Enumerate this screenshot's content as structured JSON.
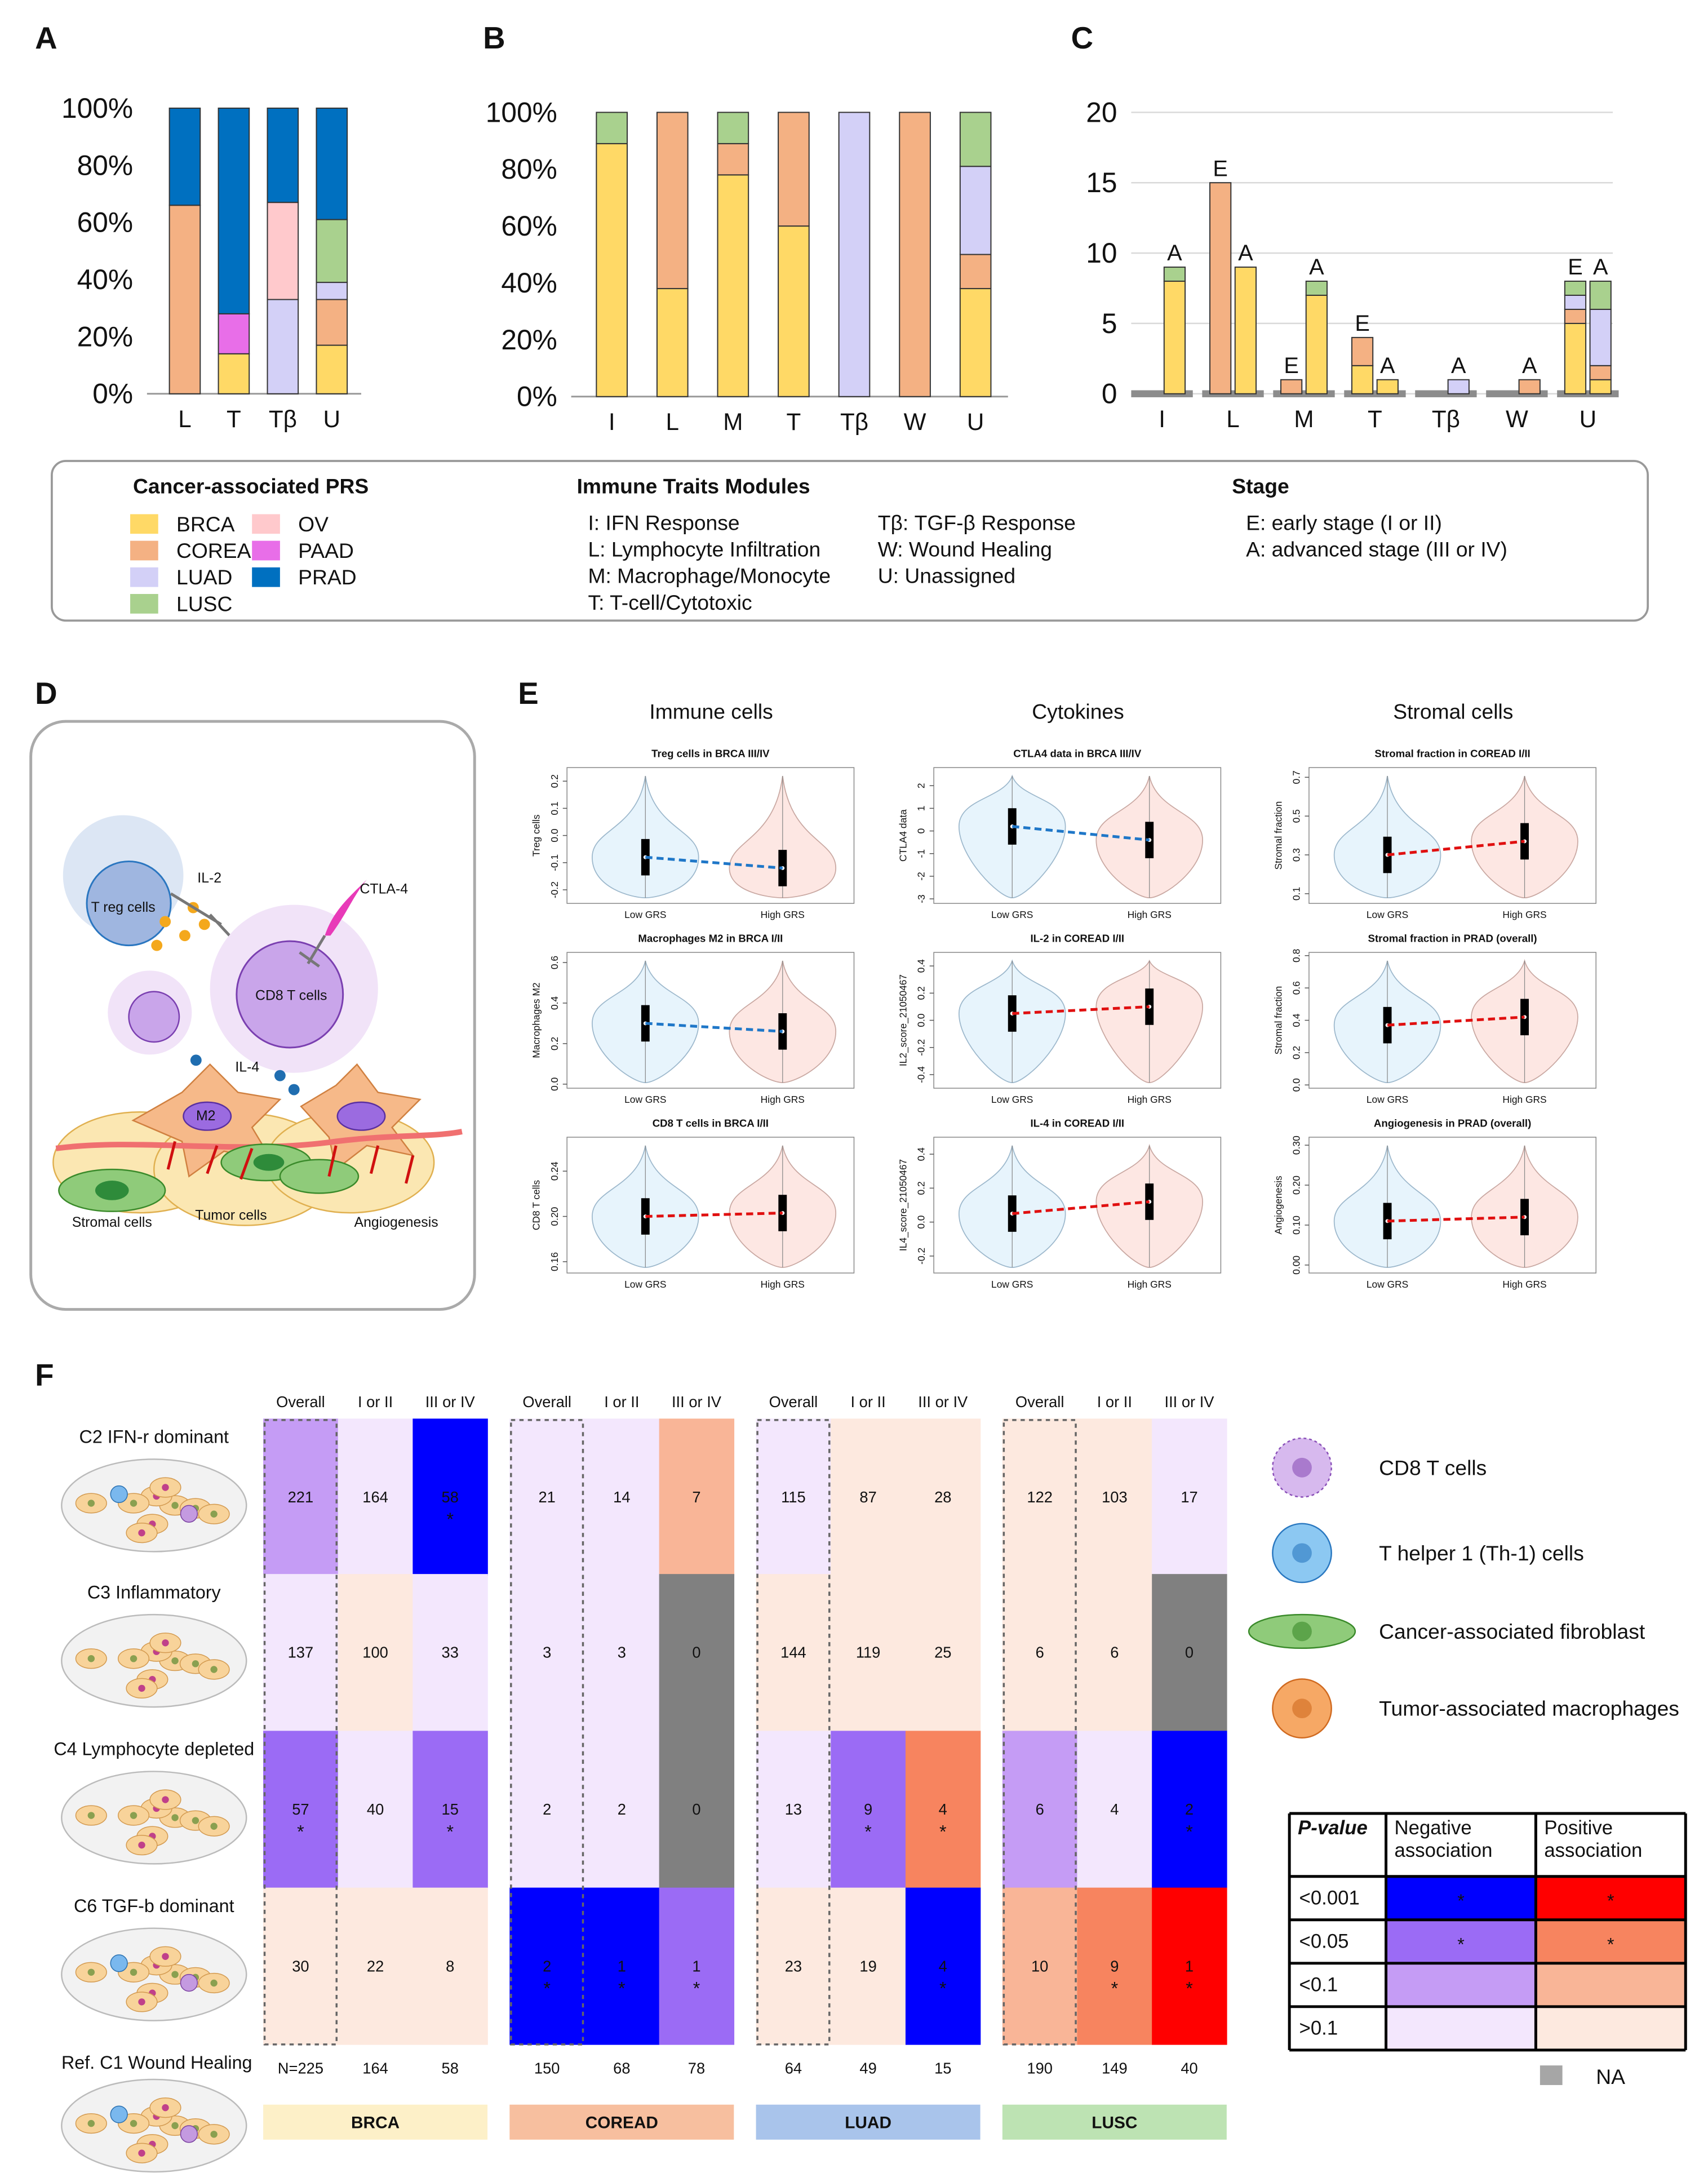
{
  "chart_data": [
    {
      "type": "bar",
      "label": "A",
      "stacked": true,
      "categories": [
        "L",
        "T",
        "Tβ",
        "U"
      ],
      "series": [
        {
          "name": "BRCA",
          "color": "#ffd966",
          "values": [
            0,
            14,
            0,
            17
          ]
        },
        {
          "name": "COREAD",
          "color": "#f4b183",
          "values": [
            66,
            0,
            0,
            16
          ]
        },
        {
          "name": "LUAD",
          "color": "#d3d0f7",
          "values": [
            0,
            0,
            33,
            6
          ]
        },
        {
          "name": "LUSC",
          "color": "#a9d18e",
          "values": [
            0,
            0,
            0,
            22
          ]
        },
        {
          "name": "OV",
          "color": "#ffc9cc",
          "values": [
            0,
            0,
            34,
            0
          ]
        },
        {
          "name": "PAAD",
          "color": "#e86ee8",
          "values": [
            0,
            14,
            0,
            0
          ]
        },
        {
          "name": "PRAD",
          "color": "#0070c0",
          "values": [
            34,
            72,
            33,
            39
          ]
        }
      ],
      "ylim": [
        0,
        100
      ],
      "yticks": [
        {
          "value": 0,
          "label": "0%"
        },
        {
          "value": 20,
          "label": "20%"
        },
        {
          "value": 40,
          "label": "40%"
        },
        {
          "value": 60,
          "label": "60%"
        },
        {
          "value": 80,
          "label": "80%"
        },
        {
          "value": 100,
          "label": "100%"
        }
      ]
    },
    {
      "type": "bar",
      "label": "B",
      "stacked": true,
      "categories": [
        "I",
        "L",
        "M",
        "T",
        "Tβ",
        "W",
        "U"
      ],
      "series": [
        {
          "name": "BRCA",
          "color": "#ffd966",
          "values": [
            89,
            38,
            78,
            60,
            0,
            0,
            38
          ]
        },
        {
          "name": "COREAD",
          "color": "#f4b183",
          "values": [
            0,
            62,
            11,
            40,
            0,
            100,
            12
          ]
        },
        {
          "name": "LUAD",
          "color": "#d3d0f7",
          "values": [
            0,
            0,
            0,
            0,
            100,
            0,
            31
          ]
        },
        {
          "name": "LUSC",
          "color": "#a9d18e",
          "values": [
            11,
            0,
            11,
            0,
            0,
            0,
            19
          ]
        }
      ],
      "ylim": [
        0,
        100
      ],
      "yticks": [
        {
          "value": 0,
          "label": "0%"
        },
        {
          "value": 20,
          "label": "20%"
        },
        {
          "value": 40,
          "label": "40%"
        },
        {
          "value": 60,
          "label": "60%"
        },
        {
          "value": 80,
          "label": "80%"
        },
        {
          "value": 100,
          "label": "100%"
        }
      ]
    },
    {
      "type": "bar",
      "label": "C",
      "stacked": true,
      "categories": [
        "I",
        "L",
        "M",
        "T",
        "Tβ",
        "W",
        "U"
      ],
      "stage_labels": [
        "E",
        "A"
      ],
      "series": [
        {
          "name": "BRCA",
          "color": "#ffd966",
          "values": [
            [
              null,
              8
            ],
            [
              0,
              9
            ],
            [
              0,
              7
            ],
            [
              2,
              1
            ],
            [
              null,
              0
            ],
            [
              null,
              0
            ],
            [
              5,
              1
            ]
          ]
        },
        {
          "name": "COREAD",
          "color": "#f4b183",
          "values": [
            [
              null,
              0
            ],
            [
              15,
              0
            ],
            [
              1,
              0
            ],
            [
              2,
              0
            ],
            [
              null,
              0
            ],
            [
              null,
              1
            ],
            [
              1,
              1
            ]
          ]
        },
        {
          "name": "LUAD",
          "color": "#d3d0f7",
          "values": [
            [
              null,
              0
            ],
            [
              0,
              0
            ],
            [
              0,
              0
            ],
            [
              0,
              0
            ],
            [
              null,
              1
            ],
            [
              null,
              0
            ],
            [
              1,
              4
            ]
          ]
        },
        {
          "name": "LUSC",
          "color": "#a9d18e",
          "values": [
            [
              null,
              1
            ],
            [
              0,
              0
            ],
            [
              0,
              1
            ],
            [
              0,
              0
            ],
            [
              null,
              0
            ],
            [
              null,
              0
            ],
            [
              1,
              2
            ]
          ]
        }
      ],
      "ylim": [
        0,
        20
      ],
      "yticks": [
        0,
        5,
        10,
        15,
        20
      ],
      "grid": true
    }
  ],
  "legend": {
    "title": "Cancer-associated PRS"
  },
  "modules": {
    "title": "Immune Traits Modules",
    "items": [
      "I: IFN Response",
      "L: Lymphocyte Infiltration",
      "M: Macrophage/Monocyte",
      "T: T-cell/Cytotoxic",
      "Tβ: TGF-β Response",
      "W: Wound Healing",
      "U: Unassigned"
    ]
  },
  "stages": {
    "title": "Stage",
    "items": [
      "E: early stage (I or II)",
      "A: advanced stage (III or IV)"
    ]
  },
  "panel_d": {
    "label": "D",
    "treg": "T reg cells",
    "il2": "IL-2",
    "ctla4": "CTLA-4",
    "cd8": "CD8 T cells",
    "il4": "IL-4",
    "m2": "M2",
    "stromal": "Stromal cells",
    "tumor": "Tumor cells",
    "angio": "Angiogenesis"
  },
  "panel_e": {
    "label": "E",
    "columns": [
      "Immune cells",
      "Cytokines",
      "Stromal cells"
    ],
    "x_labels": [
      "Low GRS",
      "High GRS"
    ],
    "plots": [
      {
        "title": "Treg cells in BRCA III/IV",
        "ylabel": "Treg cells",
        "ylim": [
          -0.25,
          0.25
        ],
        "yticks": [
          -0.2,
          -0.1,
          {
            "value": 0,
            "label": "0.0"
          },
          0.1,
          0.2
        ],
        "medians": [
          -0.08,
          -0.12
        ],
        "line_color": "#1f77c8"
      },
      {
        "title": "CTLA4 data in BRCA III/IV",
        "ylabel": "CTLA4 data",
        "ylim": [
          -3.2,
          2.8
        ],
        "yticks": [
          -3,
          -2,
          -1,
          0,
          1,
          2
        ],
        "medians": [
          0.2,
          -0.4
        ],
        "line_color": "#1f77c8"
      },
      {
        "title": "Stromal fraction in COREAD I/II",
        "ylabel": "Stromal fraction",
        "ylim": [
          0.05,
          0.75
        ],
        "yticks": [
          0.1,
          0.3,
          0.5,
          0.7
        ],
        "medians": [
          0.3,
          0.37
        ],
        "line_color": "#e01010"
      },
      {
        "title": "Macrophages M2 in BRCA I/II",
        "ylabel": "Macrophages M2",
        "ylim": [
          -0.02,
          0.65
        ],
        "yticks": [
          {
            "value": 0,
            "label": "0.0"
          },
          0.2,
          0.4,
          0.6
        ],
        "medians": [
          0.3,
          0.26
        ],
        "line_color": "#1f77c8"
      },
      {
        "title": "IL-2 in COREAD I/II",
        "ylabel": "IL2_score_21050467",
        "ylim": [
          -0.5,
          0.5
        ],
        "yticks": [
          -0.4,
          -0.2,
          {
            "value": 0,
            "label": "0.0"
          },
          0.2,
          0.4
        ],
        "medians": [
          0.05,
          0.1
        ],
        "line_color": "#e01010"
      },
      {
        "title": "Stromal fraction in PRAD (overall)",
        "ylabel": "Stromal fraction",
        "ylim": [
          -0.02,
          0.82
        ],
        "yticks": [
          {
            "value": 0,
            "label": "0.0"
          },
          0.2,
          0.4,
          0.6,
          0.8
        ],
        "medians": [
          0.37,
          0.42
        ],
        "line_color": "#e01010"
      },
      {
        "title": "CD8 T cells in BRCA I/II",
        "ylabel": "CD8 T cells",
        "ylim": [
          0.15,
          0.27
        ],
        "yticks": [
          0.16,
          {
            "value": 0.2,
            "label": "0.20"
          },
          0.24
        ],
        "medians": [
          0.2,
          0.203
        ],
        "line_color": "#e01010"
      },
      {
        "title": "IL-4 in COREAD I/II",
        "ylabel": "IL4_score_21050467",
        "ylim": [
          -0.3,
          0.5
        ],
        "yticks": [
          -0.2,
          {
            "value": 0,
            "label": "0.0"
          },
          0.2,
          0.4
        ],
        "medians": [
          0.05,
          0.12
        ],
        "line_color": "#e01010"
      },
      {
        "title": "Angiogenesis in PRAD (overall)",
        "ylabel": "Angiogenesis",
        "ylim": [
          -0.02,
          0.32
        ],
        "yticks": [
          {
            "value": 0,
            "label": "0.00"
          },
          {
            "value": 0.1,
            "label": "0.10"
          },
          {
            "value": 0.2,
            "label": "0.20"
          },
          {
            "value": 0.3,
            "label": "0.30"
          }
        ],
        "medians": [
          0.11,
          0.12
        ],
        "line_color": "#e01010"
      }
    ]
  },
  "panel_f": {
    "label": "F",
    "groups": [
      "BRCA",
      "COREAD",
      "LUAD",
      "LUSC"
    ],
    "group_colors": [
      "#fdf0c8",
      "#f7bf9f",
      "#a9c4eb",
      "#bde3b3"
    ],
    "columns": [
      "Overall",
      "I or II",
      "III or IV"
    ],
    "rows": [
      {
        "label": "C2 IFN-r dominant",
        "values": [
          221,
          164,
          58,
          21,
          14,
          7,
          115,
          87,
          28,
          122,
          103,
          17
        ],
        "colors": [
          "#c59cf5",
          "#f3e7fd",
          "#0000ff",
          "#f3e7fd",
          "#f3e7fd",
          "#f9b597",
          "#f3e7fd",
          "#fde9df",
          "#fde9df",
          "#fde9df",
          "#fde9df",
          "#f3e7fd"
        ],
        "stars": [
          null,
          null,
          "*",
          null,
          null,
          null,
          null,
          null,
          null,
          null,
          null,
          null
        ]
      },
      {
        "label": "C3 Inflammatory",
        "values": [
          137,
          100,
          33,
          3,
          3,
          0,
          144,
          119,
          25,
          6,
          6,
          0
        ],
        "colors": [
          "#f3e7fd",
          "#fde9df",
          "#f3e7fd",
          "#f3e7fd",
          "#f3e7fd",
          "#808080",
          "#fde9df",
          "#fde9df",
          "#fde9df",
          "#fde9df",
          "#fde9df",
          "#808080"
        ],
        "stars": [
          null,
          null,
          null,
          null,
          null,
          null,
          null,
          null,
          null,
          null,
          null,
          null
        ]
      },
      {
        "label": "C4 Lymphocyte depleted",
        "values": [
          57,
          40,
          15,
          2,
          2,
          0,
          13,
          9,
          4,
          6,
          4,
          2
        ],
        "colors": [
          "#9b6bf5",
          "#f3e7fd",
          "#9b6bf5",
          "#f3e7fd",
          "#f3e7fd",
          "#808080",
          "#f3e7fd",
          "#9b6bf5",
          "#f7845f",
          "#c59cf5",
          "#f3e7fd",
          "#0000ff"
        ],
        "stars": [
          "*",
          null,
          "*",
          null,
          null,
          null,
          null,
          "*",
          "*",
          null,
          null,
          "*"
        ]
      },
      {
        "label": "C6 TGF-b dominant",
        "values": [
          30,
          22,
          8,
          2,
          1,
          1,
          23,
          19,
          4,
          10,
          9,
          1
        ],
        "colors": [
          "#fde9df",
          "#fde9df",
          "#fde9df",
          "#0000ff",
          "#0000ff",
          "#9b6bf5",
          "#fde9df",
          "#fde9df",
          "#0000ff",
          "#f9b597",
          "#f7845f",
          "#ff0000"
        ],
        "stars": [
          null,
          null,
          null,
          "*",
          "*",
          "*",
          null,
          null,
          "*",
          null,
          "*",
          "*"
        ]
      }
    ],
    "reference": "Ref. C1 Wound Healing",
    "n": [
      "N=225",
      "164",
      "58",
      "150",
      "68",
      "78",
      "64",
      "49",
      "15",
      "190",
      "149",
      "40"
    ],
    "cell_types": [
      "CD8 T cells",
      "T helper 1 (Th-1) cells",
      "Cancer-associated fibroblast",
      "Tumor-associated macrophages"
    ],
    "pvalue_legend": {
      "header": "P-value",
      "columns": [
        "Negative association",
        "Positive association"
      ],
      "rows": [
        {
          "label": "<0.001",
          "colors": [
            "#0000ff",
            "#ff0000"
          ],
          "stars": [
            "*",
            "*"
          ]
        },
        {
          "label": "<0.05",
          "colors": [
            "#9b6bf5",
            "#f7845f"
          ],
          "stars": [
            "*",
            "*"
          ]
        },
        {
          "label": "<0.1",
          "colors": [
            "#c59cf5",
            "#f9b597"
          ],
          "stars": [
            null,
            null
          ]
        },
        {
          "label": ">0.1",
          "colors": [
            "#f3e7fd",
            "#fde9df"
          ],
          "stars": [
            null,
            null
          ]
        }
      ],
      "na": "NA",
      "na_color": "#a6a6a6"
    }
  }
}
